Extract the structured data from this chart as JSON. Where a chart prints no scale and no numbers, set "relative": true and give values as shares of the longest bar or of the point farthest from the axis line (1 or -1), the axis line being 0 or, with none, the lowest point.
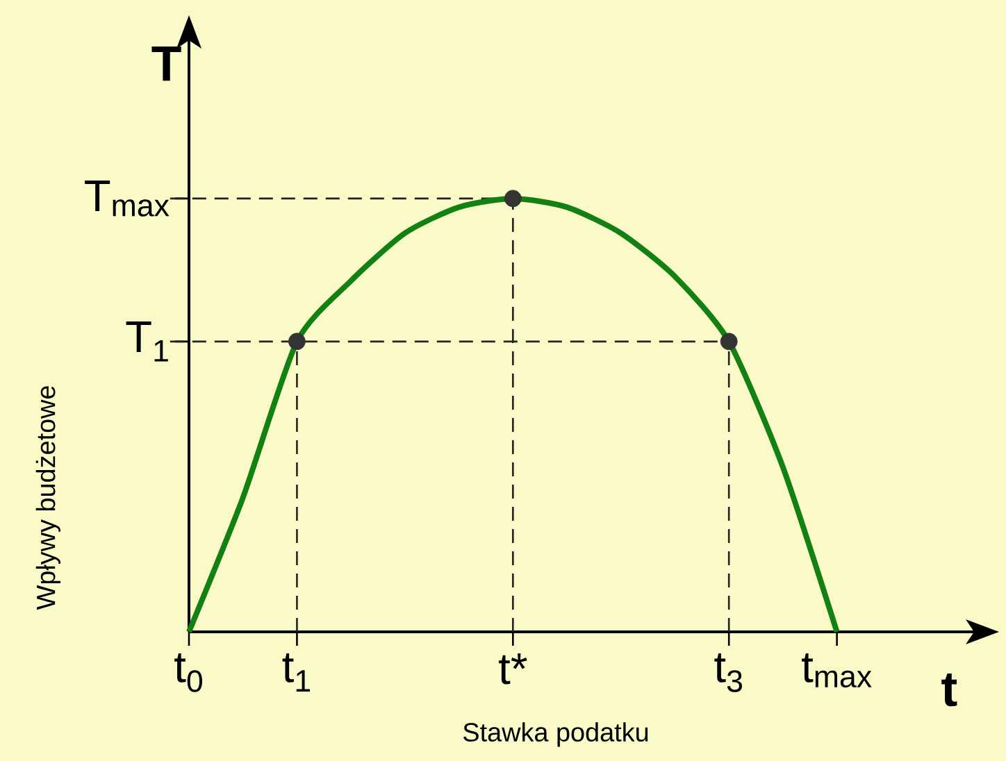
{
  "chart_data": {
    "type": "line",
    "relative": true,
    "xlabel": "Stawka podatku",
    "ylabel": "Wpływy budżetowe",
    "annotations": [
      "T",
      "t"
    ],
    "categories": [
      "t$_{0}$",
      null,
      "t$_{1}$",
      null,
      null,
      null,
      "t*",
      null,
      null,
      null,
      "t$_{3}$",
      null,
      "t$_{max}$",
      null,
      null
    ],
    "ref_lines": [
      {
        "axis": "y",
        "value": 1,
        "label": "T$_{max}$",
        "line_style": "dashed",
        "color": "#222222"
      },
      {
        "axis": "y",
        "value": 0.67,
        "label": "T$_{1}$",
        "line_style": "dashed",
        "color": "#222222"
      }
    ],
    "series": [
      {
        "color": "#138013",
        "line_style": "solid",
        "values": [
          0,
          0.31,
          0.67,
          0.81,
          0.92,
          0.98,
          1,
          0.98,
          0.92,
          0.82,
          0.67,
          0.38,
          0,
          null,
          null
        ]
      },
      {
        "type": "scatter",
        "color": "#333333",
        "marker": "circle",
        "x": [
          "t$_{1}$",
          "t*",
          "t$_{3}$"
        ],
        "values": [
          0.67,
          1,
          0.67
        ]
      }
    ]
  }
}
